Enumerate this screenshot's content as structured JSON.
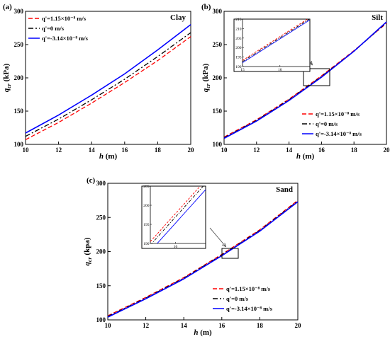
{
  "chart_data": [
    {
      "type": "line",
      "panel_label": "(a)",
      "annotation": "Clay",
      "xlabel_var": "h",
      "xlabel_unit": " (m)",
      "ylabel_var": "q",
      "ylabel_sub": "cr",
      "ylabel_unit": " (kPa)",
      "xlim": [
        10,
        20
      ],
      "ylim": [
        100,
        300
      ],
      "xticks": [
        10,
        12,
        14,
        16,
        18,
        20
      ],
      "yticks": [
        100,
        150,
        200,
        250,
        300
      ],
      "legend_position": "top-left",
      "x": [
        10,
        12,
        14,
        16,
        18,
        20
      ],
      "series": [
        {
          "name": "q'=1.15×10⁻⁸ m/s",
          "color": "#ff0000",
          "dash": "dashed",
          "values": [
            107,
            133,
            162,
            193,
            226,
            262
          ]
        },
        {
          "name": "q'=0 m/s",
          "color": "#000000",
          "dash": "dashdot",
          "values": [
            112,
            138,
            167,
            198,
            232,
            268
          ]
        },
        {
          "name": "q'=-3.14×10⁻⁸ m/s",
          "color": "#0000ff",
          "dash": "solid",
          "values": [
            117,
            144,
            174,
            206,
            242,
            280
          ]
        }
      ]
    },
    {
      "type": "line",
      "panel_label": "(b)",
      "annotation": "Silt",
      "xlabel_var": "h",
      "xlabel_unit": " (m)",
      "ylabel_var": "q",
      "ylabel_sub": "cr",
      "ylabel_unit": " (kPa)",
      "xlim": [
        10,
        20
      ],
      "ylim": [
        100,
        300
      ],
      "xticks": [
        10,
        12,
        14,
        16,
        18,
        20
      ],
      "yticks": [
        100,
        150,
        200,
        250,
        300
      ],
      "legend_position": "bottom-right",
      "x": [
        10,
        12,
        14,
        16,
        18,
        20
      ],
      "series": [
        {
          "name": "q'=1.15×10⁻⁸ m/s",
          "color": "#ff0000",
          "dash": "dashed",
          "values": [
            111,
            137,
            168,
            203,
            241,
            282
          ]
        },
        {
          "name": "q'=0 m/s",
          "color": "#000000",
          "dash": "dashdot",
          "values": [
            110,
            136,
            167,
            202,
            240,
            283
          ]
        },
        {
          "name": "q'=-3.14×10⁻⁸ m/s",
          "color": "#0000ff",
          "dash": "solid",
          "values": [
            109,
            135,
            166,
            201,
            240,
            284
          ]
        }
      ],
      "inset": {
        "xlim": [
          15,
          16.8
        ],
        "ylim": [
          190,
          215
        ],
        "xticks": [
          15,
          16
        ],
        "yticks": [
          190,
          195,
          200,
          205,
          210,
          215
        ],
        "x": [
          15,
          16.8
        ],
        "series_values": [
          [
            193.2,
            215.8
          ],
          [
            192.6,
            215.2
          ],
          [
            192.0,
            214.6
          ]
        ]
      }
    },
    {
      "type": "line",
      "panel_label": "(c)",
      "annotation": "Sand",
      "xlabel_var": "h",
      "xlabel_unit": " (m)",
      "ylabel_var": "q",
      "ylabel_sub": "cr",
      "ylabel_unit": " (kpa)",
      "xlim": [
        10,
        20
      ],
      "ylim": [
        100,
        300
      ],
      "xticks": [
        10,
        12,
        14,
        16,
        18,
        20
      ],
      "yticks": [
        100,
        150,
        200,
        250,
        300
      ],
      "legend_position": "bottom-right",
      "x": [
        10,
        12,
        14,
        16,
        18,
        20
      ],
      "series": [
        {
          "name": "q'=1.15×10⁻⁸ m/s",
          "color": "#ff0000",
          "dash": "dashed",
          "values": [
            106,
            133,
            162,
            196,
            232,
            275
          ]
        },
        {
          "name": "q'=0 m/s",
          "color": "#000000",
          "dash": "dashdot",
          "values": [
            105,
            132,
            161,
            195,
            231,
            274
          ]
        },
        {
          "name": "q'=-3.14×10⁻⁸ m/s",
          "color": "#0000ff",
          "dash": "solid",
          "values": [
            104,
            131,
            160,
            194,
            230,
            273
          ]
        }
      ],
      "inset": {
        "xlim": [
          15.5,
          16.6
        ],
        "ylim": [
          190,
          205
        ],
        "xticks": [
          16
        ],
        "yticks": [
          190,
          195,
          200,
          205
        ],
        "x": [
          15.5,
          16.6
        ],
        "series_values": [
          [
            190.5,
            206.6
          ],
          [
            189.6,
            205.7
          ],
          [
            188.0,
            204.1
          ]
        ]
      }
    }
  ]
}
